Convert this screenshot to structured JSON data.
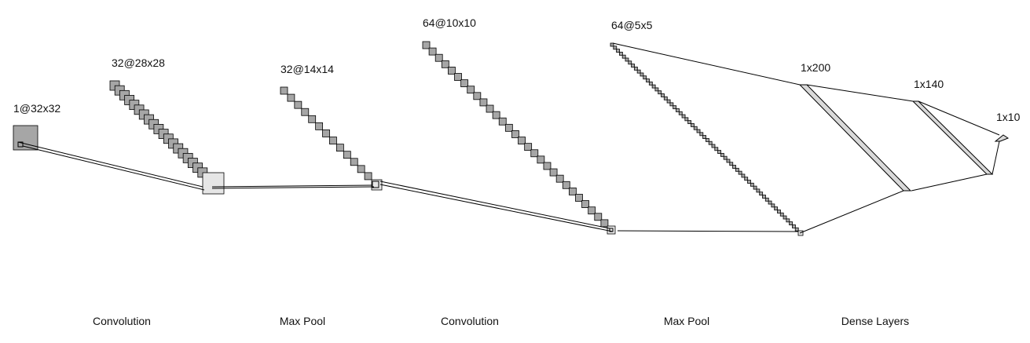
{
  "diagram": {
    "layers": [
      {
        "id": "input",
        "label": "1@32x32"
      },
      {
        "id": "conv1",
        "label": "32@28x28"
      },
      {
        "id": "pool1",
        "label": "32@14x14"
      },
      {
        "id": "conv2",
        "label": "64@10x10"
      },
      {
        "id": "pool2",
        "label": "64@5x5"
      },
      {
        "id": "dense1",
        "label": "1x200"
      },
      {
        "id": "dense2",
        "label": "1x140"
      },
      {
        "id": "output",
        "label": "1x10"
      }
    ],
    "operations": [
      "Convolution",
      "Max Pool",
      "Convolution",
      "Max Pool",
      "Dense Layers"
    ],
    "colors": {
      "stroke": "#000000",
      "feature_map_fill": "#a6a6a6",
      "last_map_fill": "#e6e6e6",
      "dense_fill": "#d9d9d9"
    }
  }
}
